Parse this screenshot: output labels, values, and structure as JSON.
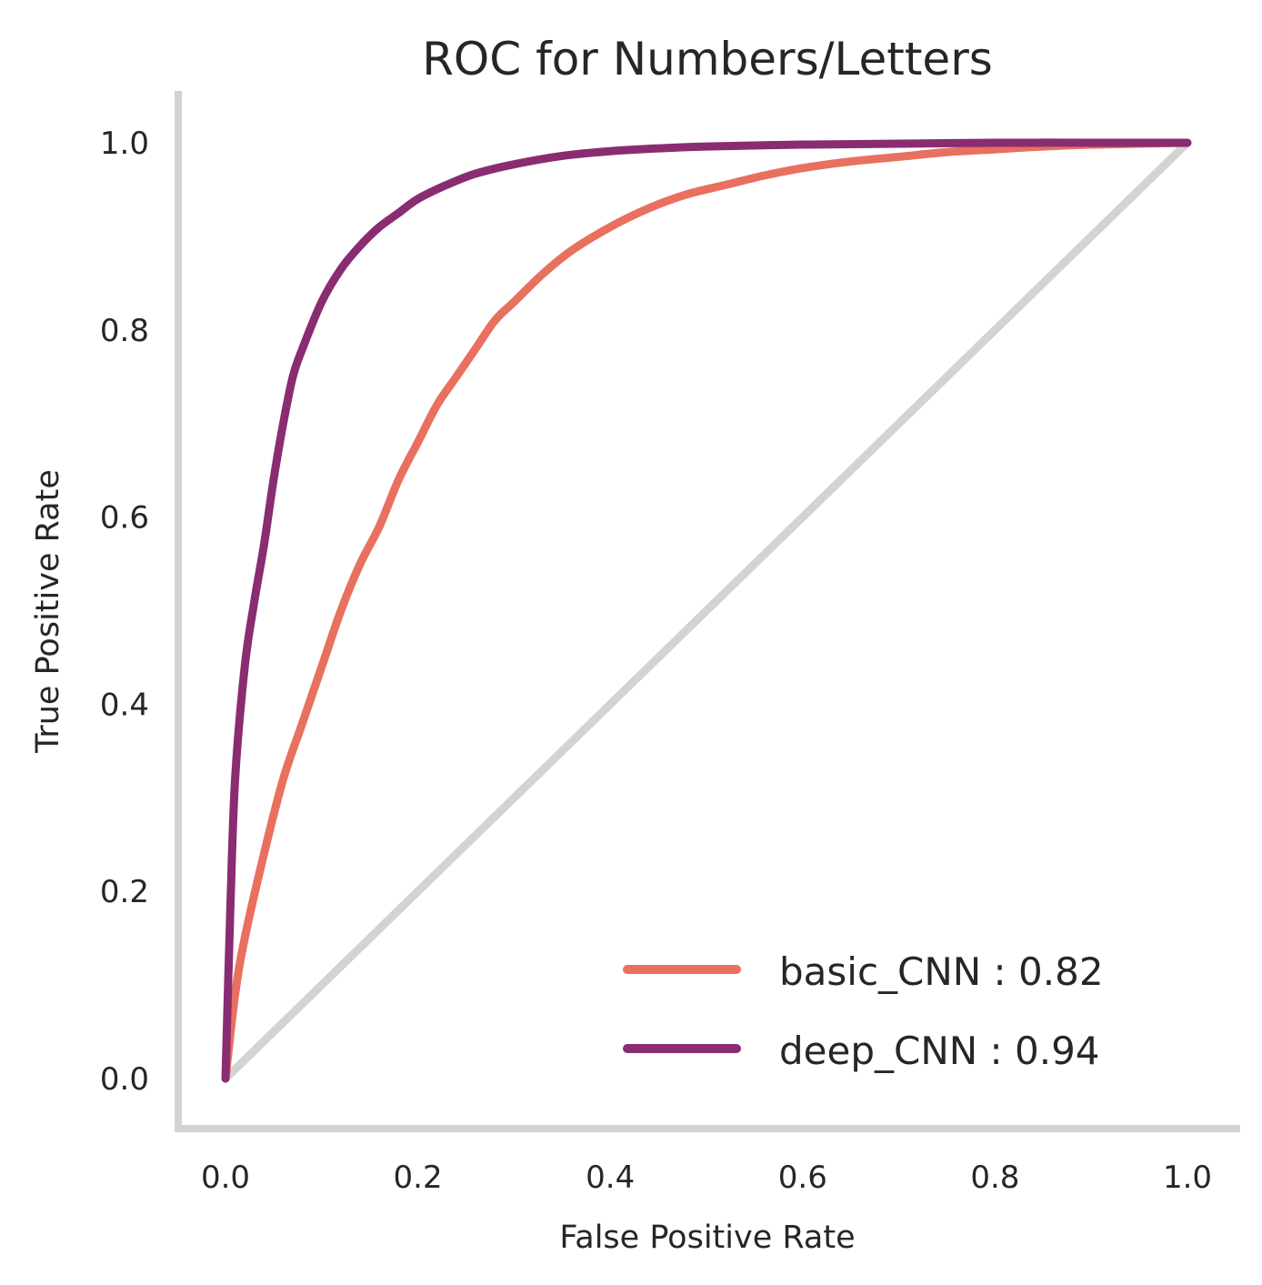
{
  "chart_data": {
    "type": "line",
    "title": "ROC for Numbers/Letters",
    "xlabel": "False Positive Rate",
    "ylabel": "True Positive Rate",
    "xlim": [
      -0.05,
      1.05
    ],
    "ylim": [
      -0.05,
      1.05
    ],
    "xticks": [
      "0.0",
      "0.2",
      "0.4",
      "0.6",
      "0.8",
      "1.0"
    ],
    "yticks": [
      "0.0",
      "0.2",
      "0.4",
      "0.6",
      "0.8",
      "1.0"
    ],
    "grid": false,
    "legend_position": "lower-right",
    "axis_color": "#d3d3d3",
    "diagonal": {
      "x": [
        0,
        1
      ],
      "y": [
        0,
        1
      ],
      "color": "#d3d3d3"
    },
    "series": [
      {
        "name": "basic_CNN : 0.82",
        "color": "#e8705e",
        "x": [
          0,
          0.01,
          0.02,
          0.04,
          0.06,
          0.08,
          0.1,
          0.12,
          0.14,
          0.16,
          0.18,
          0.2,
          0.22,
          0.24,
          0.26,
          0.28,
          0.3,
          0.33,
          0.36,
          0.4,
          0.44,
          0.48,
          0.52,
          0.56,
          0.6,
          0.65,
          0.7,
          0.75,
          0.8,
          0.85,
          0.9,
          0.95,
          1.0
        ],
        "y": [
          0,
          0.09,
          0.15,
          0.24,
          0.32,
          0.38,
          0.44,
          0.5,
          0.55,
          0.59,
          0.64,
          0.68,
          0.72,
          0.75,
          0.78,
          0.81,
          0.83,
          0.86,
          0.885,
          0.91,
          0.93,
          0.945,
          0.955,
          0.965,
          0.973,
          0.98,
          0.985,
          0.99,
          0.993,
          0.996,
          0.998,
          0.999,
          1.0
        ]
      },
      {
        "name": "deep_CNN : 0.94",
        "color": "#892c72",
        "x": [
          0,
          0.005,
          0.01,
          0.02,
          0.03,
          0.04,
          0.05,
          0.06,
          0.07,
          0.08,
          0.1,
          0.12,
          0.14,
          0.16,
          0.18,
          0.2,
          0.23,
          0.26,
          0.3,
          0.35,
          0.4,
          0.45,
          0.5,
          0.6,
          0.7,
          0.8,
          0.9,
          1.0
        ],
        "y": [
          0,
          0.18,
          0.32,
          0.44,
          0.51,
          0.57,
          0.64,
          0.7,
          0.75,
          0.78,
          0.83,
          0.865,
          0.89,
          0.91,
          0.925,
          0.94,
          0.955,
          0.967,
          0.977,
          0.986,
          0.991,
          0.994,
          0.996,
          0.998,
          0.999,
          1.0,
          1.0,
          1.0
        ]
      }
    ]
  }
}
